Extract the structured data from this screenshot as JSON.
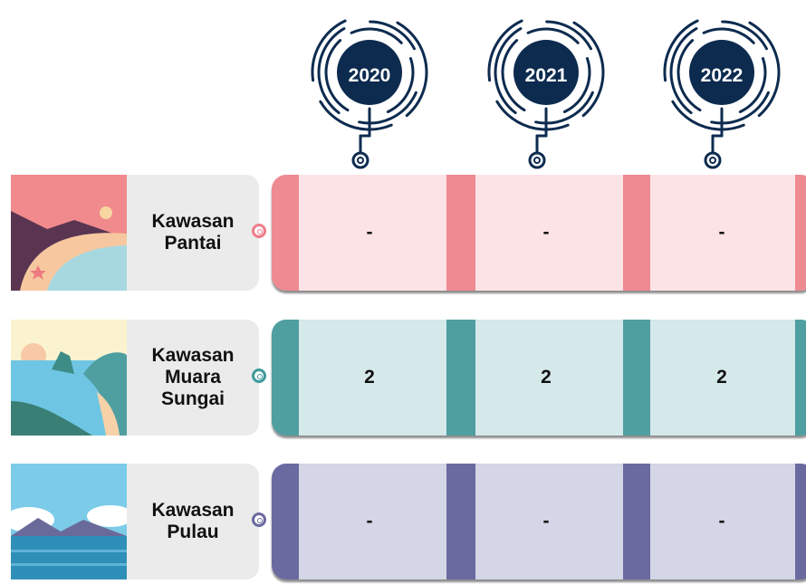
{
  "columns": [
    "2020",
    "2021",
    "2022"
  ],
  "rows": [
    {
      "label": "Kawasan Pantai",
      "cells": [
        "-",
        "-",
        "-"
      ]
    },
    {
      "label": "Kawasan Muara Sungai",
      "cells": [
        2,
        2,
        2
      ]
    },
    {
      "label": "Kawasan Pulau",
      "cells": [
        "-",
        "-",
        "-"
      ]
    }
  ]
}
